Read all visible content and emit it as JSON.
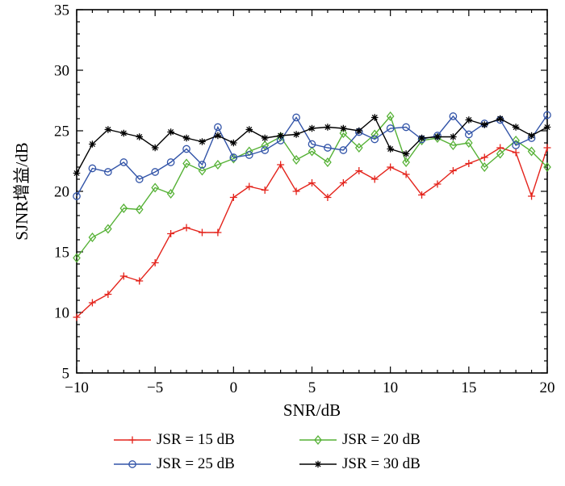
{
  "figure": {
    "xlabel": "SNR/dB",
    "ylabel": "SJNR增益/dB"
  },
  "chart_data": {
    "type": "line",
    "title": "",
    "xlabel": "SNR/dB",
    "ylabel": "SJNR增益/dB",
    "xlim": [
      -10,
      20
    ],
    "ylim": [
      5,
      35
    ],
    "x_major_ticks": [
      -10,
      -5,
      0,
      5,
      10,
      15,
      20
    ],
    "y_major_ticks": [
      5,
      10,
      15,
      20,
      25,
      30,
      35
    ],
    "minor_tick_step": 1,
    "grid": "off",
    "legend_position": "below",
    "x": [
      -10,
      -9,
      -8,
      -7,
      -6,
      -5,
      -4,
      -3,
      -2,
      -1,
      0,
      1,
      2,
      3,
      4,
      5,
      6,
      7,
      8,
      9,
      10,
      11,
      12,
      13,
      14,
      15,
      16,
      17,
      18,
      19,
      20
    ],
    "series": [
      {
        "name": "JSR = 15 dB",
        "color": "#e4231b",
        "marker": "plus",
        "values": [
          9.6,
          10.8,
          11.5,
          13.0,
          12.6,
          14.1,
          16.5,
          17.0,
          16.6,
          16.6,
          19.5,
          20.4,
          20.1,
          22.2,
          20.0,
          20.7,
          19.5,
          20.7,
          21.7,
          21.0,
          22.0,
          21.4,
          19.7,
          20.6,
          21.7,
          22.3,
          22.8,
          23.6,
          23.2,
          19.6,
          23.6
        ]
      },
      {
        "name": "JSR = 20 dB",
        "color": "#55b135",
        "marker": "diamond",
        "values": [
          14.5,
          16.2,
          16.9,
          18.6,
          18.5,
          20.3,
          19.8,
          22.3,
          21.7,
          22.2,
          22.7,
          23.3,
          23.8,
          24.5,
          22.6,
          23.3,
          22.4,
          24.8,
          23.6,
          24.7,
          26.2,
          22.4,
          24.2,
          24.4,
          23.8,
          24.0,
          22.0,
          23.1,
          24.2,
          23.3,
          22.0
        ]
      },
      {
        "name": "JSR = 25 dB",
        "color": "#3254a8",
        "marker": "circle",
        "values": [
          19.6,
          21.9,
          21.6,
          22.4,
          21.0,
          21.6,
          22.4,
          23.5,
          22.2,
          25.3,
          22.8,
          23.0,
          23.4,
          24.2,
          26.1,
          23.9,
          23.6,
          23.4,
          24.9,
          24.3,
          25.2,
          25.3,
          24.3,
          24.6,
          26.2,
          24.7,
          25.6,
          25.9,
          23.8,
          24.4,
          26.3
        ]
      },
      {
        "name": "JSR = 30 dB",
        "color": "#000000",
        "marker": "asterisk",
        "values": [
          21.5,
          23.9,
          25.1,
          24.8,
          24.5,
          23.6,
          24.9,
          24.4,
          24.1,
          24.6,
          24.0,
          25.1,
          24.4,
          24.6,
          24.7,
          25.2,
          25.3,
          25.2,
          25.0,
          26.1,
          23.5,
          23.1,
          24.4,
          24.5,
          24.5,
          25.9,
          25.5,
          26.0,
          25.3,
          24.6,
          25.3
        ]
      }
    ]
  }
}
